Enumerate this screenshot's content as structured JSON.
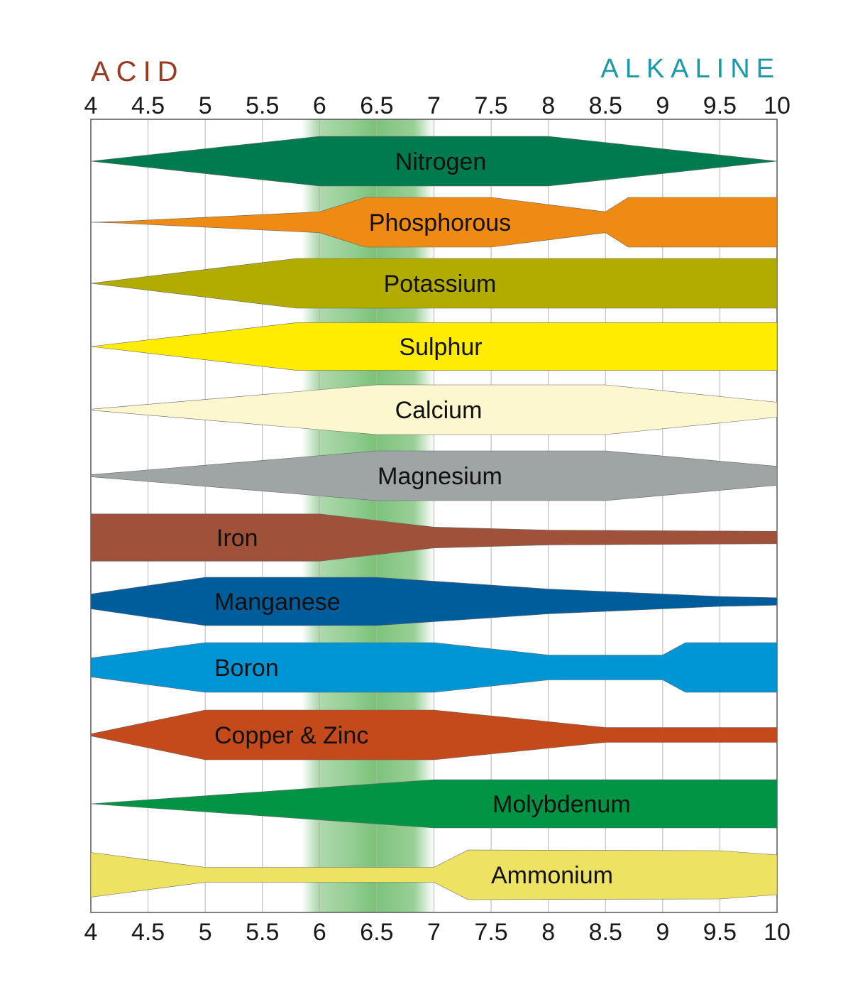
{
  "chart_data": {
    "type": "area",
    "title": "",
    "left_label": "Acid",
    "right_label": "Alkaline",
    "left_label_color": "#9b3a22",
    "right_label_color": "#1a9aa8",
    "xlim": [
      4,
      10
    ],
    "x_ticks": [
      "4",
      "4.5",
      "5",
      "5.5",
      "6",
      "6.5",
      "7",
      "7.5",
      "8",
      "8.5",
      "9",
      "9.5",
      "10"
    ],
    "grid": true,
    "optimal_band": {
      "from": 6,
      "to": 7,
      "color": "#6dbb6a"
    },
    "series": [
      {
        "name": "Nitrogen",
        "color": "#007a4f",
        "profile": [
          [
            4,
            0
          ],
          [
            6,
            1
          ],
          [
            8,
            1
          ],
          [
            10,
            0
          ]
        ]
      },
      {
        "name": "Phosphorous",
        "color": "#ef8a12",
        "profile": [
          [
            4,
            0
          ],
          [
            4.25,
            0.03
          ],
          [
            6,
            0.42
          ],
          [
            6.4,
            1
          ],
          [
            7.5,
            1
          ],
          [
            8.5,
            0.42
          ],
          [
            8.7,
            1
          ],
          [
            10,
            1
          ]
        ]
      },
      {
        "name": "Potassium",
        "color": "#b3ac00",
        "profile": [
          [
            4,
            0
          ],
          [
            5.8,
            1
          ],
          [
            10,
            1
          ]
        ]
      },
      {
        "name": "Sulphur",
        "color": "#ffec00",
        "profile": [
          [
            4,
            0
          ],
          [
            5.8,
            0.96
          ],
          [
            10,
            0.96
          ]
        ]
      },
      {
        "name": "Calcium",
        "color": "#fdf7cf",
        "profile": [
          [
            4,
            0.02
          ],
          [
            6.5,
            1
          ],
          [
            8.5,
            1
          ],
          [
            10,
            0.3
          ]
        ]
      },
      {
        "name": "Magnesium",
        "color": "#9fa5a5",
        "profile": [
          [
            4,
            0.04
          ],
          [
            6.5,
            1
          ],
          [
            8.5,
            1
          ],
          [
            10,
            0.38
          ]
        ]
      },
      {
        "name": "Iron",
        "color": "#a0513a",
        "profile": [
          [
            4,
            0.95
          ],
          [
            6,
            0.95
          ],
          [
            7,
            0.42
          ],
          [
            8,
            0.3
          ],
          [
            10,
            0.25
          ]
        ]
      },
      {
        "name": "Manganese",
        "color": "#005d9c",
        "profile": [
          [
            4,
            0.3
          ],
          [
            5,
            0.97
          ],
          [
            6.5,
            0.97
          ],
          [
            8,
            0.5
          ],
          [
            9.5,
            0.2
          ],
          [
            10,
            0.15
          ]
        ]
      },
      {
        "name": "Boron",
        "color": "#0096d6",
        "profile": [
          [
            4,
            0.38
          ],
          [
            5,
            1
          ],
          [
            7,
            1
          ],
          [
            8,
            0.5
          ],
          [
            9,
            0.5
          ],
          [
            9.2,
            1
          ],
          [
            10,
            1
          ]
        ]
      },
      {
        "name": "Copper & Zinc",
        "color": "#c44a1c",
        "profile": [
          [
            4,
            0.04
          ],
          [
            5,
            1
          ],
          [
            7,
            1
          ],
          [
            8.5,
            0.3
          ],
          [
            10,
            0.3
          ]
        ]
      },
      {
        "name": "Molybdenum",
        "color": "#009444",
        "profile": [
          [
            4,
            0
          ],
          [
            7,
            0.97
          ],
          [
            10,
            0.97
          ]
        ]
      },
      {
        "name": "Ammonium",
        "color": "#eee262",
        "profile": [
          [
            4,
            0.9
          ],
          [
            5,
            0.3
          ],
          [
            7,
            0.3
          ],
          [
            7.3,
            1
          ],
          [
            9.5,
            0.97
          ],
          [
            10,
            0.8
          ]
        ]
      }
    ]
  }
}
